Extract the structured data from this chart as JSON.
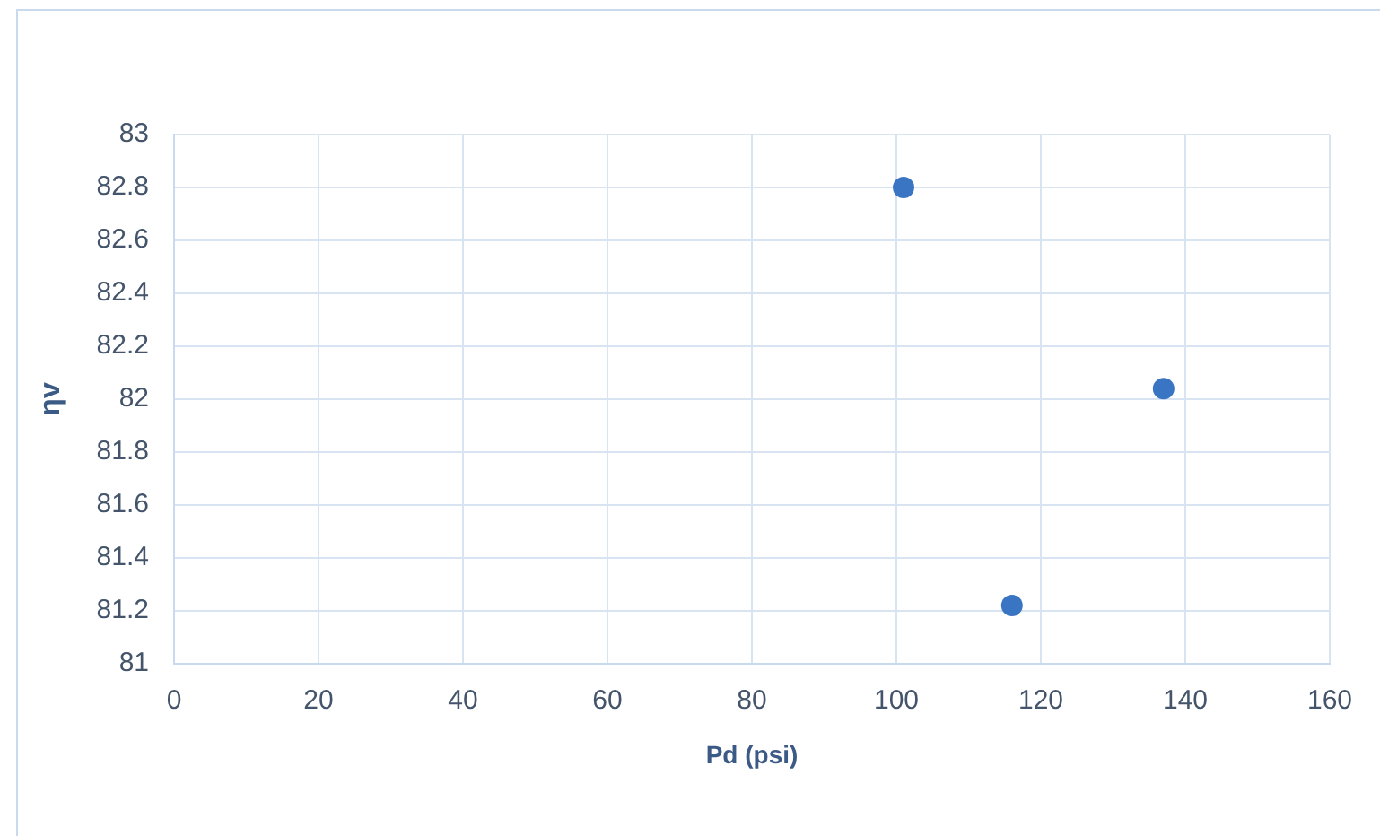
{
  "chart_data": {
    "type": "scatter",
    "xlabel": "Pd (psi)",
    "ylabel": "ηv",
    "x": [
      101,
      116,
      137
    ],
    "series": [
      {
        "color": "#3a75c4",
        "values": [
          82.8,
          81.22,
          82.04
        ]
      }
    ],
    "xlim": [
      0,
      160
    ],
    "xticks": [
      0,
      20,
      40,
      60,
      80,
      100,
      120,
      140,
      160
    ],
    "ylim": [
      81,
      83
    ],
    "yticks": [
      81,
      81.2,
      81.4,
      81.6,
      81.8,
      82,
      82.2,
      82.4,
      82.6,
      82.8,
      83
    ],
    "grid": true,
    "marker": "circle"
  }
}
